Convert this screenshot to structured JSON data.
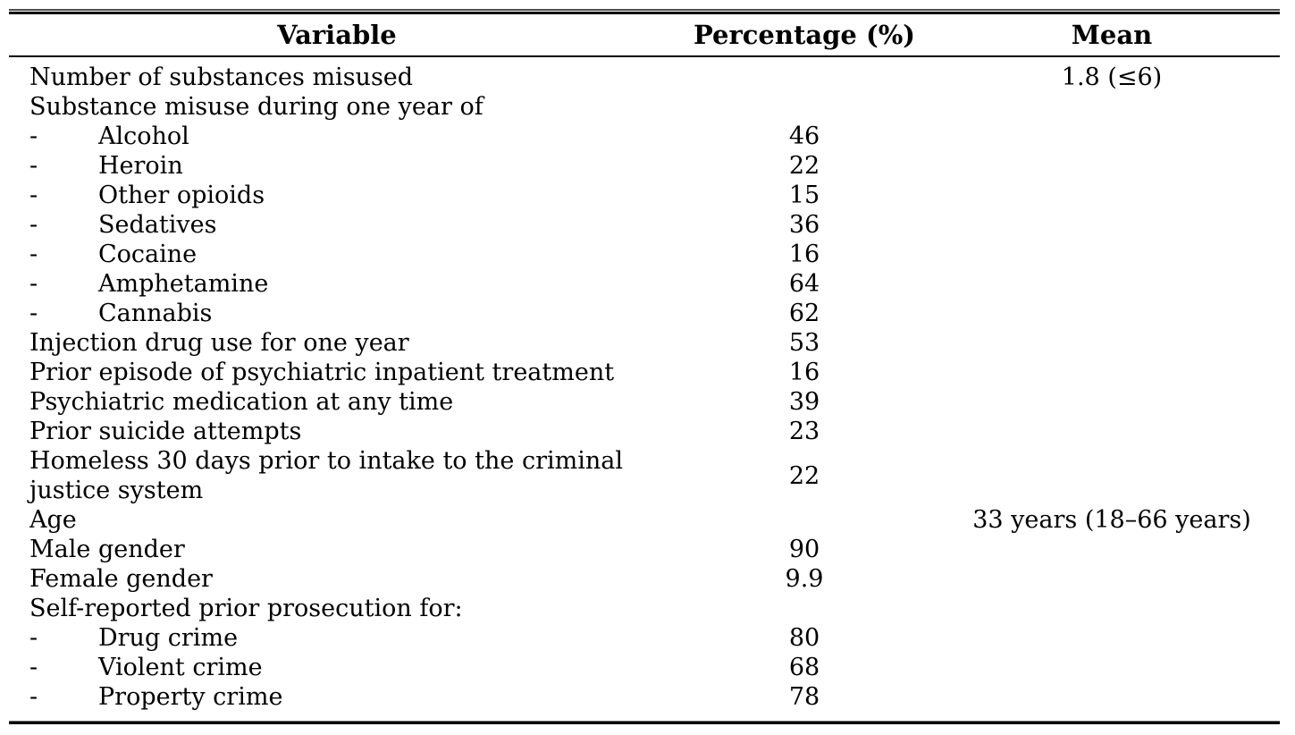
{
  "table": {
    "bullet": "-",
    "columns": [
      {
        "label": "Variable"
      },
      {
        "label": "Percentage (%)"
      },
      {
        "label": "Mean"
      }
    ],
    "rows": [
      {
        "label": "Number of substances misused",
        "indent": false,
        "percentage": "",
        "mean": "1.8 (≤6)"
      },
      {
        "label": "Substance misuse during one year of",
        "indent": false,
        "percentage": "",
        "mean": ""
      },
      {
        "label": "Alcohol",
        "indent": true,
        "percentage": "46",
        "mean": ""
      },
      {
        "label": "Heroin",
        "indent": true,
        "percentage": "22",
        "mean": ""
      },
      {
        "label": "Other opioids",
        "indent": true,
        "percentage": "15",
        "mean": ""
      },
      {
        "label": "Sedatives",
        "indent": true,
        "percentage": "36",
        "mean": ""
      },
      {
        "label": "Cocaine",
        "indent": true,
        "percentage": "16",
        "mean": ""
      },
      {
        "label": "Amphetamine",
        "indent": true,
        "percentage": "64",
        "mean": ""
      },
      {
        "label": "Cannabis",
        "indent": true,
        "percentage": "62",
        "mean": ""
      },
      {
        "label": "Injection drug use for one year",
        "indent": false,
        "percentage": "53",
        "mean": ""
      },
      {
        "label": "Prior episode of psychiatric inpatient treatment",
        "indent": false,
        "percentage": "16",
        "mean": ""
      },
      {
        "label": "Psychiatric medication at any time",
        "indent": false,
        "percentage": "39",
        "mean": ""
      },
      {
        "label": "Prior suicide attempts",
        "indent": false,
        "percentage": "23",
        "mean": ""
      },
      {
        "label": "Homeless 30 days prior to intake to the criminal\njustice system",
        "indent": false,
        "percentage": "22",
        "mean": ""
      },
      {
        "label": "Age",
        "indent": false,
        "percentage": "",
        "mean": "33 years (18–66 years)"
      },
      {
        "label": "Male gender",
        "indent": false,
        "percentage": "90",
        "mean": ""
      },
      {
        "label": "Female gender",
        "indent": false,
        "percentage": "9.9",
        "mean": ""
      },
      {
        "label": "Self-reported prior prosecution for:",
        "indent": false,
        "percentage": "",
        "mean": ""
      },
      {
        "label": "Drug crime",
        "indent": true,
        "percentage": "80",
        "mean": ""
      },
      {
        "label": "Violent crime",
        "indent": true,
        "percentage": "68",
        "mean": ""
      },
      {
        "label": "Property crime",
        "indent": true,
        "percentage": "78",
        "mean": ""
      }
    ]
  }
}
